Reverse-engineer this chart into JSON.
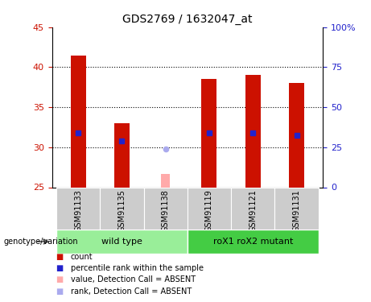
{
  "title": "GDS2769 / 1632047_at",
  "samples": [
    "GSM91133",
    "GSM91135",
    "GSM91138",
    "GSM91119",
    "GSM91121",
    "GSM91131"
  ],
  "bar_values": [
    41.5,
    33.0,
    null,
    38.5,
    39.0,
    38.0
  ],
  "absent_bar_value": 26.7,
  "absent_bar_idx": 2,
  "blue_marker_values": [
    31.8,
    30.8,
    null,
    31.8,
    31.8,
    31.5
  ],
  "absent_rank_value": 29.8,
  "absent_rank_idx": 2,
  "ymin": 25,
  "ymax": 45,
  "yticks_left": [
    25,
    30,
    35,
    40,
    45
  ],
  "yticks_right": [
    0,
    25,
    50,
    75,
    100
  ],
  "yticks_right_labels": [
    "0",
    "25",
    "50",
    "75",
    "100%"
  ],
  "bar_color": "#cc1100",
  "blue_color": "#2222cc",
  "absent_bar_color": "#ffaaaa",
  "absent_rank_color": "#aaaaee",
  "grid_color": "#000000",
  "groups": [
    {
      "label": "wild type",
      "samples": [
        0,
        1,
        2
      ],
      "color": "#99ee99"
    },
    {
      "label": "roX1 roX2 mutant",
      "samples": [
        3,
        4,
        5
      ],
      "color": "#44cc44"
    }
  ],
  "genotype_label": "genotype/variation",
  "legend_items": [
    {
      "label": "count",
      "color": "#cc1100"
    },
    {
      "label": "percentile rank within the sample",
      "color": "#2222cc"
    },
    {
      "label": "value, Detection Call = ABSENT",
      "color": "#ffaaaa"
    },
    {
      "label": "rank, Detection Call = ABSENT",
      "color": "#aaaaee"
    }
  ],
  "tick_label_color_left": "#cc1100",
  "tick_label_color_right": "#2222cc",
  "bar_width": 0.35,
  "x_positions": [
    0,
    1,
    2,
    3,
    4,
    5
  ],
  "label_bg_color": "#cccccc",
  "fig_bg_color": "#ffffff"
}
